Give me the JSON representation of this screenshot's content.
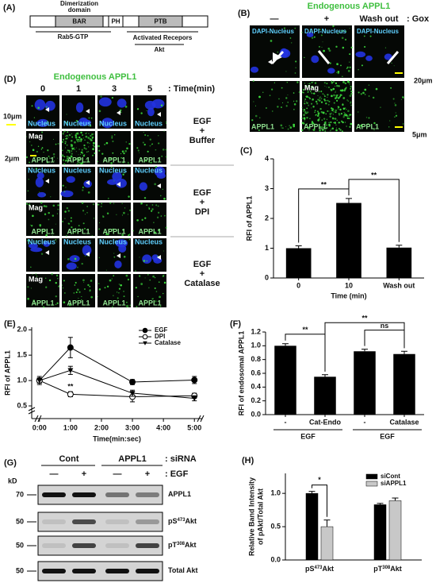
{
  "panel_a": {
    "label": "(A)",
    "dimerization": [
      "Dimerization",
      "domain"
    ],
    "domains": [
      "BAR",
      "PH",
      "PTB"
    ],
    "binders": [
      "Rab5-GTP",
      "Activated Recepors",
      "Akt"
    ]
  },
  "panel_b": {
    "label": "(B)",
    "title": "Endogenous APPL1",
    "columns": [
      "—",
      "+",
      "Wash out"
    ],
    "treatment": ": Gox",
    "nucleus_label": "DAPI-Nucleus",
    "mag": "Mag",
    "channel": "APPL1",
    "scale1": "20μm",
    "scale2": "5μm"
  },
  "panel_d": {
    "label": "(D)",
    "title": "Endogenous APPL1",
    "times": [
      "0",
      "1",
      "3",
      "5"
    ],
    "time_unit": ": Time(min)",
    "scale1": "10μm",
    "scale2": "2μm",
    "nucleus": "Nucleus",
    "mag": "Mag",
    "channel": "APPL1",
    "conditions": [
      [
        "EGF",
        "+",
        "Buffer"
      ],
      [
        "EGF",
        "+",
        "DPI"
      ],
      [
        "EGF",
        "+",
        "Catalase"
      ]
    ]
  },
  "panel_g": {
    "label": "(G)",
    "groups": [
      "Cont",
      "APPL1"
    ],
    "group_key": ": siRNA",
    "signs": [
      "—",
      "+",
      "—",
      "+"
    ],
    "sign_key": ": EGF",
    "kd": "kD",
    "markers": [
      "70",
      "50",
      "50",
      "50"
    ],
    "bands": [
      {
        "pre": "APPL1"
      },
      {
        "pre": "pS",
        "sup": "473",
        "post": "Akt"
      },
      {
        "pre": "pT",
        "sup": "308",
        "post": "Akt"
      },
      {
        "pre": "Total Akt"
      }
    ]
  },
  "chart_data": [
    {
      "panel": "(C)",
      "type": "bar",
      "categories": [
        "0",
        "10",
        "Wash out"
      ],
      "values": [
        1.0,
        2.52,
        1.02
      ],
      "errors": [
        0.08,
        0.15,
        0.08
      ],
      "color": "#000000",
      "xlabel": "Time (min)",
      "ylabel": "RFI of APPL1",
      "ylim": [
        0,
        4
      ],
      "yticks": [
        0,
        1,
        2,
        3,
        4
      ],
      "annotations": [
        "**",
        "**"
      ]
    },
    {
      "panel": "(E)",
      "type": "line",
      "x": [
        0,
        1,
        3,
        5
      ],
      "xlim": [
        -0.25,
        5.25
      ],
      "xticks": [
        {
          "value": 0,
          "label": "0:00"
        },
        {
          "value": 1,
          "label": "1:00"
        },
        {
          "value": 2,
          "label": "2:00"
        },
        {
          "value": 3,
          "label": "3:00"
        },
        {
          "value": 4,
          "label": "4:00"
        },
        {
          "value": 5,
          "label": "5:00"
        }
      ],
      "ylim": [
        0.25,
        2.05
      ],
      "yticks": [
        {
          "value": 0.5,
          "label": "0.5"
        },
        {
          "value": 1.0,
          "label": "1.0"
        },
        {
          "value": 1.5,
          "label": "1.5"
        },
        {
          "value": 2.0,
          "label": "2.0"
        }
      ],
      "xlabel": "Time(min:sec)",
      "ylabel": "RFI of APPL1",
      "legend": "upper right",
      "series": [
        {
          "name": "EGF",
          "color": "#000000",
          "marker": "circle",
          "values": [
            1.0,
            1.65,
            0.97,
            1.01
          ],
          "errors": [
            0.08,
            0.2,
            0.05,
            0.07
          ]
        },
        {
          "name": "DPI",
          "color": "#000000",
          "marker": "circle-open",
          "values": [
            1.0,
            0.73,
            0.68,
            0.7
          ],
          "errors": [
            0.05,
            0.05,
            0.1,
            0.05
          ]
        },
        {
          "name": "Catalase",
          "color": "#000000",
          "marker": "triangle-down",
          "values": [
            1.0,
            1.2,
            0.75,
            0.65
          ],
          "errors": [
            0.05,
            0.08,
            0.06,
            0.05
          ]
        }
      ],
      "annotations": [
        "**"
      ]
    },
    {
      "panel": "(F)",
      "type": "bar",
      "categories": [
        "-",
        "Cat-Endo",
        "-",
        "Catalase"
      ],
      "groups": [
        "EGF",
        "EGF"
      ],
      "values": [
        1.0,
        0.55,
        0.92,
        0.88
      ],
      "errors": [
        0.03,
        0.03,
        0.03,
        0.04
      ],
      "color": "#000000",
      "ylabel": "RFI of endosomal APPL1",
      "ylim": [
        0,
        1.2
      ],
      "yticks": [
        {
          "value": 0,
          "label": "0.0"
        },
        {
          "value": 0.2,
          "label": "0.2"
        },
        {
          "value": 0.4,
          "label": "0.4"
        },
        {
          "value": 0.6,
          "label": "0.6"
        },
        {
          "value": 0.8,
          "label": "0.8"
        },
        {
          "value": 1.0,
          "label": "1.0"
        },
        {
          "value": 1.2,
          "label": "1.2"
        }
      ],
      "annotations": [
        "**",
        "**",
        "ns"
      ]
    },
    {
      "panel": "(H)",
      "type": "grouped-bar",
      "categories": [
        {
          "pre": "pS",
          "sup": "473",
          "post": "Akt"
        },
        {
          "pre": "pT",
          "sup": "308",
          "post": "Akt"
        }
      ],
      "ylabel": [
        "Relative Band Intensity",
        "of pAkt/Total Akt"
      ],
      "ylim": [
        0,
        1.3
      ],
      "legend": "upper right",
      "yticks": [
        {
          "value": 0,
          "label": "0.0"
        },
        {
          "value": 0.5,
          "label": "0.5"
        },
        {
          "value": 1.0,
          "label": "1.0"
        }
      ],
      "series": [
        {
          "name": "siCont",
          "color": "#000000",
          "values": [
            1.0,
            0.83
          ],
          "errors": [
            0.03,
            0.02
          ]
        },
        {
          "name": "siAPPL1",
          "color": "#c8c8c8",
          "values": [
            0.5,
            0.89
          ],
          "errors": [
            0.1,
            0.04
          ]
        }
      ],
      "annotations": [
        "*"
      ]
    }
  ]
}
